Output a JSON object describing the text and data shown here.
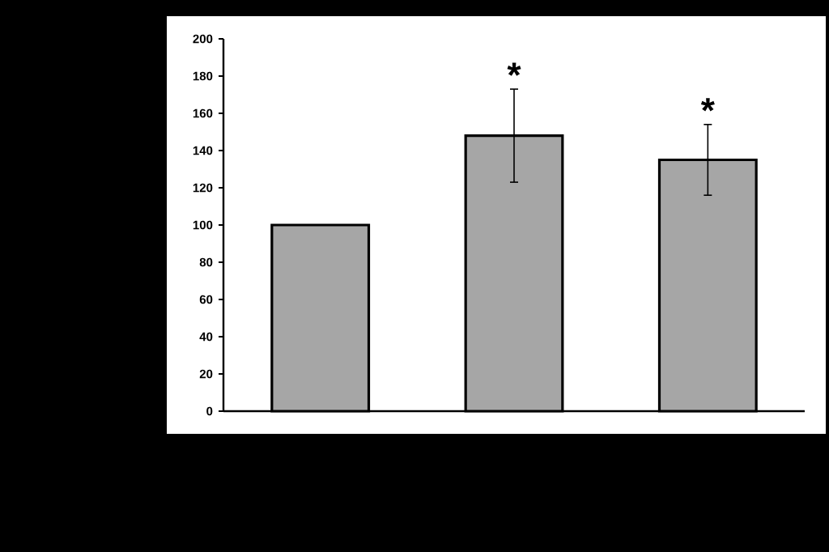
{
  "chart_data": {
    "type": "bar",
    "categories": [
      null,
      null,
      null
    ],
    "values": [
      100,
      148,
      135
    ],
    "errors": [
      null,
      25,
      19
    ],
    "color": "#a6a6a6",
    "ylim": [
      0,
      200
    ],
    "yticks": [
      0,
      20,
      40,
      60,
      80,
      100,
      120,
      140,
      160,
      180,
      200
    ],
    "annotations": [
      "*",
      "*"
    ],
    "grid": false
  }
}
